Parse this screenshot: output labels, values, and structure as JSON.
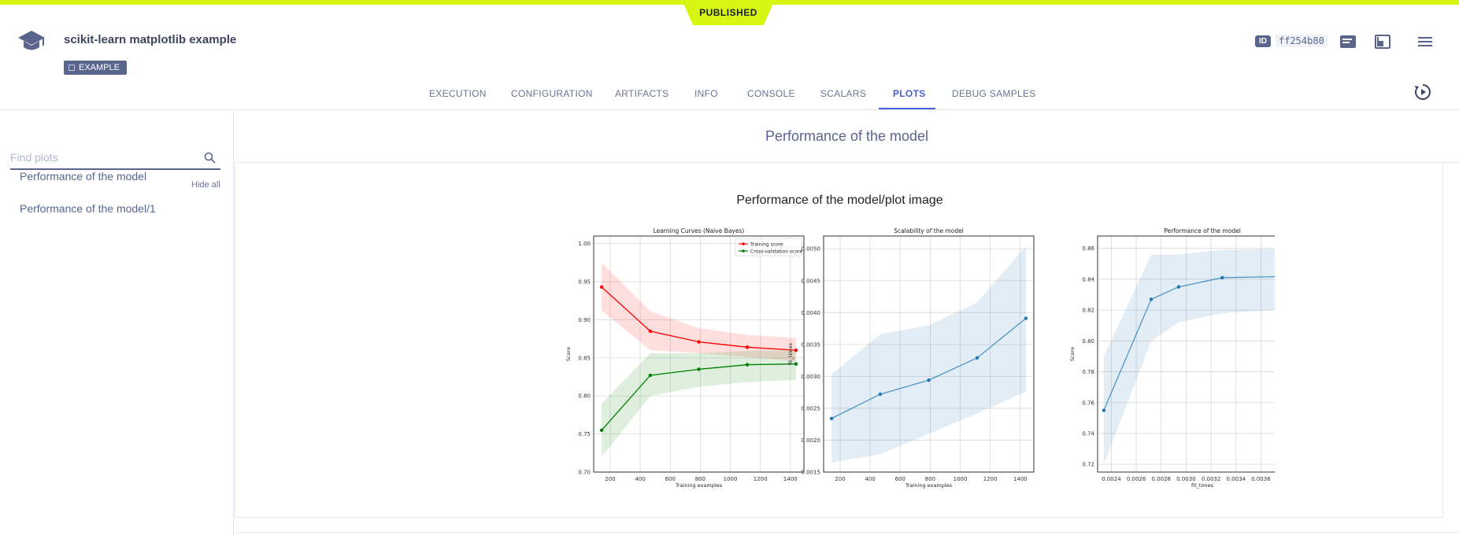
{
  "status_badge": "PUBLISHED",
  "task": {
    "title": "scikit-learn matplotlib example",
    "tag": "EXAMPLE"
  },
  "header": {
    "id_label": "ID",
    "id_value": "ff254b80"
  },
  "tabs": [
    {
      "label": "EXECUTION"
    },
    {
      "label": "CONFIGURATION"
    },
    {
      "label": "ARTIFACTS"
    },
    {
      "label": "INFO"
    },
    {
      "label": "CONSOLE"
    },
    {
      "label": "SCALARS"
    },
    {
      "label": "PLOTS",
      "active": true
    },
    {
      "label": "DEBUG SAMPLES"
    }
  ],
  "sidebar": {
    "search_placeholder": "Find plots",
    "hide_all": "Hide all",
    "items": [
      {
        "label": "Performance of the model"
      },
      {
        "label": "Performance of the model/1"
      }
    ]
  },
  "main": {
    "section_title": "Performance of the model",
    "plot_title": "Performance of the model/plot image"
  },
  "colors": {
    "accent": "#d8f512",
    "primary": "#5a658e",
    "active_tab": "#4a5fd6"
  },
  "chart_data": [
    {
      "type": "line",
      "title": "Learning Curves (Naive Bayes)",
      "xlabel": "Training examples",
      "ylabel": "Score",
      "xlim": [
        90,
        1490
      ],
      "ylim": [
        0.7,
        1.01
      ],
      "xticks": [
        200,
        400,
        600,
        800,
        1000,
        1200,
        1400
      ],
      "yticks": [
        0.7,
        0.75,
        0.8,
        0.85,
        0.9,
        0.95,
        1.0
      ],
      "grid": true,
      "legend": "top-right",
      "x": [
        143,
        467,
        790,
        1113,
        1437
      ],
      "series": [
        {
          "name": "Training score",
          "color": "#ff0000",
          "values": [
            0.943,
            0.885,
            0.871,
            0.864,
            0.86
          ],
          "band_low": [
            0.912,
            0.86,
            0.856,
            0.851,
            0.846
          ],
          "band_high": [
            0.975,
            0.911,
            0.889,
            0.88,
            0.876
          ]
        },
        {
          "name": "Cross-validation score",
          "color": "#008000",
          "values": [
            0.755,
            0.827,
            0.835,
            0.841,
            0.842
          ],
          "band_low": [
            0.72,
            0.8,
            0.812,
            0.818,
            0.821
          ],
          "band_high": [
            0.79,
            0.856,
            0.856,
            0.859,
            0.86
          ]
        }
      ]
    },
    {
      "type": "line",
      "title": "Scalability of the model",
      "xlabel": "Training examples",
      "ylabel": "fit_times",
      "xlim": [
        90,
        1490
      ],
      "ylim": [
        0.0015,
        0.0052
      ],
      "xticks": [
        200,
        400,
        600,
        800,
        1000,
        1200,
        1400
      ],
      "yticks": [
        0.0015,
        0.002,
        0.0025,
        0.003,
        0.0035,
        0.004,
        0.0045,
        0.005
      ],
      "grid": true,
      "x": [
        143,
        467,
        790,
        1113,
        1437
      ],
      "series": [
        {
          "color": "#1f77b4",
          "values": [
            0.00234,
            0.00272,
            0.00294,
            0.00329,
            0.00391
          ],
          "band_low": [
            0.00165,
            0.00178,
            0.0021,
            0.00242,
            0.00276
          ],
          "band_high": [
            0.00303,
            0.00366,
            0.0038,
            0.00416,
            0.00504
          ]
        }
      ]
    },
    {
      "type": "line",
      "title": "Performance of the model",
      "xlabel": "fit_times",
      "ylabel": "Score",
      "xlim": [
        0.00229,
        0.00397
      ],
      "ylim": [
        0.715,
        0.868
      ],
      "xticks": [
        0.0024,
        0.0026,
        0.0028,
        0.003,
        0.0032,
        0.0034,
        0.0036,
        0.0038
      ],
      "yticks": [
        0.72,
        0.74,
        0.76,
        0.78,
        0.8,
        0.82,
        0.84,
        0.86
      ],
      "grid": true,
      "series": [
        {
          "color": "#1f77b4",
          "x": [
            0.00234,
            0.00272,
            0.00294,
            0.00329,
            0.00391
          ],
          "values": [
            0.755,
            0.827,
            0.835,
            0.841,
            0.842
          ],
          "band_low": [
            0.72,
            0.8,
            0.812,
            0.818,
            0.821
          ],
          "band_high": [
            0.79,
            0.856,
            0.856,
            0.859,
            0.86
          ]
        }
      ]
    }
  ]
}
